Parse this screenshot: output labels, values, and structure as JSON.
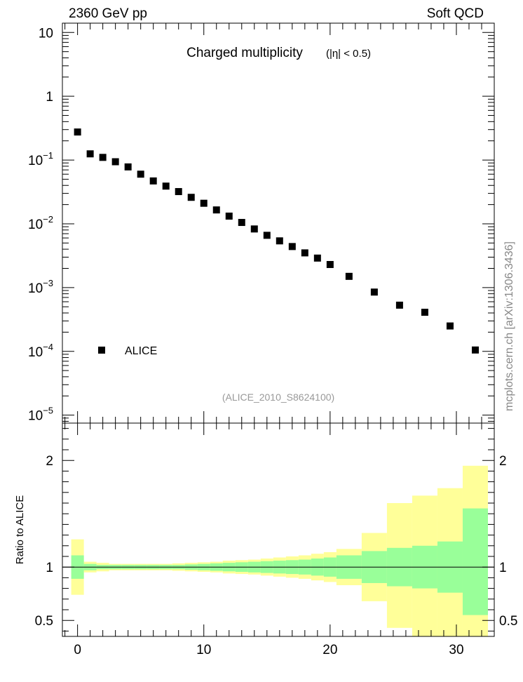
{
  "header": {
    "energy_label": "2360 GeV pp",
    "process_label": "Soft QCD",
    "side_label": "mcplots.cern.ch [arXiv:1306.3436]"
  },
  "chart_data": [
    {
      "type": "scatter",
      "title": "Charged multiplicity",
      "title_cut": "(|η| < 0.5)",
      "reference": "(ALICE_2010_S8624100)",
      "yscale": "log",
      "xlim": [
        -1.2,
        33
      ],
      "ylim": [
        7.5e-06,
        14
      ],
      "ytick_labels": [
        {
          "base": "10",
          "exp": "-5",
          "value": 1e-05
        },
        {
          "base": "10",
          "exp": "-4",
          "value": 0.0001
        },
        {
          "base": "10",
          "exp": "-3",
          "value": 0.001
        },
        {
          "base": "10",
          "exp": "-2",
          "value": 0.01
        },
        {
          "base": "10",
          "exp": "-1",
          "value": 0.1
        },
        {
          "base": "1",
          "exp": "",
          "value": 1
        },
        {
          "base": "10",
          "exp": "",
          "value": 10
        }
      ],
      "legend": {
        "position": "lower-left",
        "label": "ALICE"
      },
      "marker_color": "#000000",
      "series": [
        {
          "name": "ALICE",
          "points": [
            [
              0,
              0.275
            ],
            [
              1,
              0.125
            ],
            [
              2,
              0.11
            ],
            [
              3,
              0.094
            ],
            [
              4,
              0.078
            ],
            [
              5,
              0.06
            ],
            [
              6,
              0.047
            ],
            [
              7,
              0.039
            ],
            [
              8,
              0.032
            ],
            [
              9,
              0.026
            ],
            [
              10,
              0.021
            ],
            [
              11,
              0.0165
            ],
            [
              12,
              0.0132
            ],
            [
              13,
              0.0105
            ],
            [
              14,
              0.0083
            ],
            [
              15,
              0.0066
            ],
            [
              16,
              0.0054
            ],
            [
              17,
              0.0044
            ],
            [
              18,
              0.0035
            ],
            [
              19,
              0.0029
            ],
            [
              20,
              0.0023
            ],
            [
              21.5,
              0.0015
            ],
            [
              23.5,
              0.00085
            ],
            [
              25.5,
              0.00053
            ],
            [
              27.5,
              0.00041
            ],
            [
              29.5,
              0.00025
            ],
            [
              31.5,
              0.000105
            ]
          ]
        }
      ]
    },
    {
      "type": "area",
      "ylabel": "Ratio to ALICE",
      "xlim": [
        -1.2,
        33
      ],
      "ylim": [
        0.35,
        2.35
      ],
      "x_ticks": [
        0,
        10,
        20,
        30
      ],
      "y_ticks": [
        0.5,
        1,
        2
      ],
      "reference_line": 1,
      "band_colors": {
        "stat_syst": "#ffff99",
        "stat": "#99ff99"
      },
      "bins": [
        {
          "lo": -0.5,
          "hi": 0.5,
          "green": [
            0.89,
            1.11
          ],
          "yellow": [
            0.74,
            1.26
          ]
        },
        {
          "lo": 0.5,
          "hi": 1.5,
          "green": [
            0.97,
            1.03
          ],
          "yellow": [
            0.95,
            1.05
          ]
        },
        {
          "lo": 1.5,
          "hi": 2.5,
          "green": [
            0.98,
            1.02
          ],
          "yellow": [
            0.96,
            1.04
          ]
        },
        {
          "lo": 2.5,
          "hi": 3.5,
          "green": [
            0.98,
            1.02
          ],
          "yellow": [
            0.97,
            1.03
          ]
        },
        {
          "lo": 3.5,
          "hi": 4.5,
          "green": [
            0.98,
            1.02
          ],
          "yellow": [
            0.97,
            1.03
          ]
        },
        {
          "lo": 4.5,
          "hi": 5.5,
          "green": [
            0.98,
            1.02
          ],
          "yellow": [
            0.97,
            1.03
          ]
        },
        {
          "lo": 5.5,
          "hi": 6.5,
          "green": [
            0.98,
            1.02
          ],
          "yellow": [
            0.97,
            1.03
          ]
        },
        {
          "lo": 6.5,
          "hi": 7.5,
          "green": [
            0.98,
            1.02
          ],
          "yellow": [
            0.97,
            1.03
          ]
        },
        {
          "lo": 7.5,
          "hi": 8.5,
          "green": [
            0.98,
            1.02
          ],
          "yellow": [
            0.965,
            1.035
          ]
        },
        {
          "lo": 8.5,
          "hi": 9.5,
          "green": [
            0.975,
            1.025
          ],
          "yellow": [
            0.96,
            1.04
          ]
        },
        {
          "lo": 9.5,
          "hi": 10.5,
          "green": [
            0.97,
            1.03
          ],
          "yellow": [
            0.955,
            1.045
          ]
        },
        {
          "lo": 10.5,
          "hi": 11.5,
          "green": [
            0.965,
            1.035
          ],
          "yellow": [
            0.95,
            1.05
          ]
        },
        {
          "lo": 11.5,
          "hi": 12.5,
          "green": [
            0.96,
            1.04
          ],
          "yellow": [
            0.94,
            1.06
          ]
        },
        {
          "lo": 12.5,
          "hi": 13.5,
          "green": [
            0.955,
            1.045
          ],
          "yellow": [
            0.935,
            1.065
          ]
        },
        {
          "lo": 13.5,
          "hi": 14.5,
          "green": [
            0.95,
            1.05
          ],
          "yellow": [
            0.93,
            1.07
          ]
        },
        {
          "lo": 14.5,
          "hi": 15.5,
          "green": [
            0.945,
            1.055
          ],
          "yellow": [
            0.92,
            1.08
          ]
        },
        {
          "lo": 15.5,
          "hi": 16.5,
          "green": [
            0.94,
            1.06
          ],
          "yellow": [
            0.91,
            1.09
          ]
        },
        {
          "lo": 16.5,
          "hi": 17.5,
          "green": [
            0.935,
            1.065
          ],
          "yellow": [
            0.9,
            1.1
          ]
        },
        {
          "lo": 17.5,
          "hi": 18.5,
          "green": [
            0.93,
            1.07
          ],
          "yellow": [
            0.89,
            1.11
          ]
        },
        {
          "lo": 18.5,
          "hi": 19.5,
          "green": [
            0.92,
            1.08
          ],
          "yellow": [
            0.875,
            1.125
          ]
        },
        {
          "lo": 19.5,
          "hi": 20.5,
          "green": [
            0.91,
            1.09
          ],
          "yellow": [
            0.86,
            1.14
          ]
        },
        {
          "lo": 20.5,
          "hi": 22.5,
          "green": [
            0.89,
            1.11
          ],
          "yellow": [
            0.83,
            1.17
          ]
        },
        {
          "lo": 22.5,
          "hi": 24.5,
          "green": [
            0.85,
            1.15
          ],
          "yellow": [
            0.68,
            1.32
          ]
        },
        {
          "lo": 24.5,
          "hi": 26.5,
          "green": [
            0.82,
            1.18
          ],
          "yellow": [
            0.43,
            1.6
          ]
        },
        {
          "lo": 26.5,
          "hi": 28.5,
          "green": [
            0.8,
            1.2
          ],
          "yellow": [
            0.35,
            1.67
          ]
        },
        {
          "lo": 28.5,
          "hi": 30.5,
          "green": [
            0.76,
            1.24
          ],
          "yellow": [
            0.35,
            1.74
          ]
        },
        {
          "lo": 30.5,
          "hi": 32.5,
          "green": [
            0.55,
            1.55
          ],
          "yellow": [
            0.35,
            1.95
          ]
        }
      ]
    }
  ]
}
